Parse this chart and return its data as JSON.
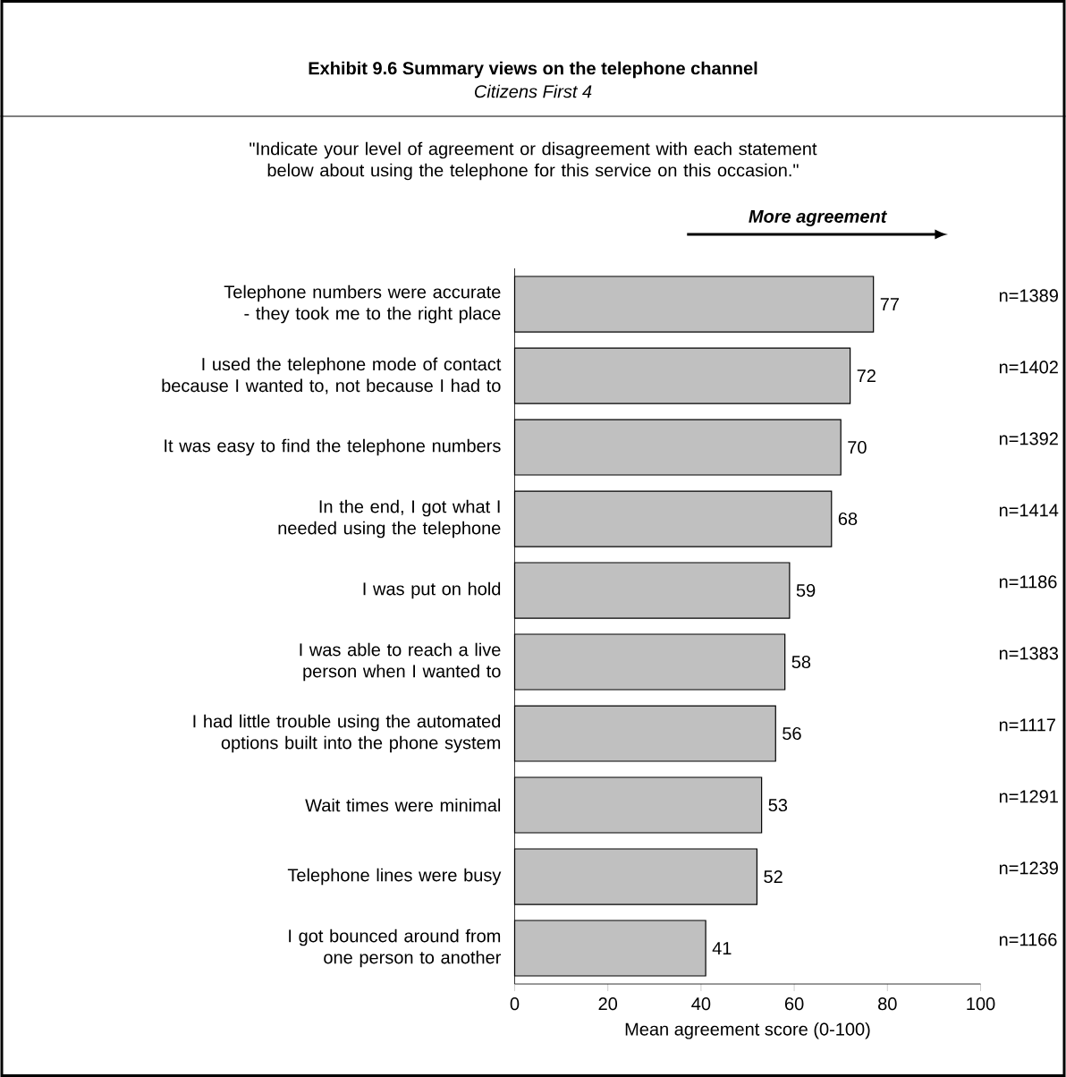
{
  "chart_data": {
    "type": "bar",
    "orientation": "horizontal",
    "title": "Exhibit 9.6  Summary views on the telephone channel",
    "subtitle": "Citizens First 4",
    "xlabel": "Mean agreement score (0-100)",
    "categories": [
      "Telephone numbers were accurate - they took me to the right place",
      "I used the telephone mode of contact because I wanted to, not because I had to",
      "It was easy to find the telephone numbers",
      "In the end, I got what I needed using the telephone",
      "I was put on hold",
      "I was able to reach a live person when I wanted to",
      "I had little trouble using the automated options built into the phone system",
      "Wait times were minimal",
      "Telephone lines were busy",
      "I got bounced around from one person to another"
    ],
    "values": [
      77,
      72,
      70,
      68,
      59,
      58,
      56,
      53,
      52,
      41
    ],
    "color": "#c0c0c0",
    "data_labels": true,
    "xlim": [
      0,
      100
    ],
    "xticks": [
      0,
      20,
      40,
      60,
      80,
      100
    ],
    "annotations": [
      "\"Indicate your level of agreement or disagreement with each statement below about using the telephone for this service on this occasion.\"",
      "More agreement",
      "n=1389",
      "n=1402",
      "n=1392",
      "n=1414",
      "n=1186",
      "n=1383",
      "n=1117",
      "n=1291",
      "n=1239",
      "n=1166"
    ]
  }
}
